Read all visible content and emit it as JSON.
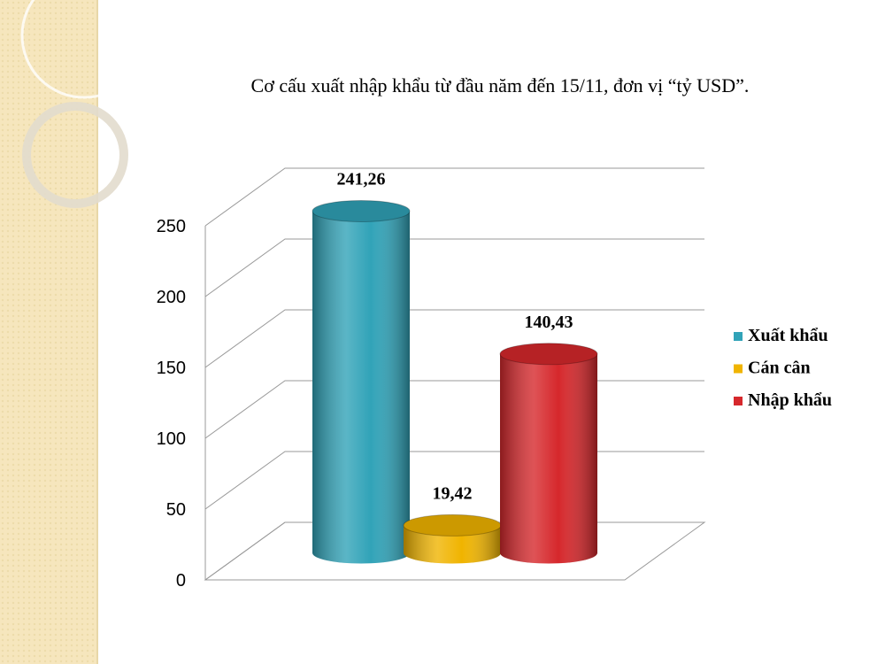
{
  "chart_data": {
    "type": "bar",
    "style": "3d-cylinder",
    "title": "Cơ cấu xuất nhập khẩu từ đầu năm đến 15/11, đơn vị “tỷ USD”.",
    "categories": [
      null
    ],
    "series": [
      {
        "name": "Xuất khẩu",
        "color": "#31a3b8",
        "values": [
          241.26
        ],
        "value_labels": [
          "241,26"
        ]
      },
      {
        "name": "Cán cân",
        "color": "#f0b400",
        "values": [
          19.42
        ],
        "value_labels": [
          "19,42"
        ]
      },
      {
        "name": "Nhập khẩu",
        "color": "#d6282c",
        "values": [
          140.43
        ],
        "value_labels": [
          "140,43"
        ]
      }
    ],
    "ylim": [
      0,
      250
    ],
    "yticks": [
      0,
      50,
      100,
      150,
      200,
      250
    ],
    "grid": true,
    "legend": "right"
  }
}
